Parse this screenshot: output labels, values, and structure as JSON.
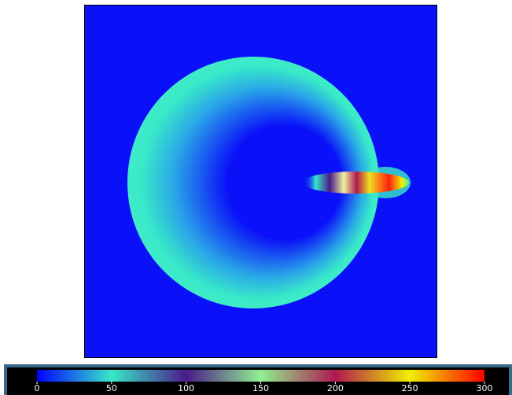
{
  "chart_data": {
    "type": "colorbar",
    "xlim": [
      0,
      300
    ],
    "xticks": [
      0,
      50,
      100,
      150,
      200,
      250,
      300
    ],
    "colormap": [
      {
        "value": 0,
        "color": "#0000ff"
      },
      {
        "value": 50,
        "color": "#38e8c8"
      },
      {
        "value": 100,
        "color": "#4a1a8a"
      },
      {
        "value": 150,
        "color": "#90f090"
      },
      {
        "value": 200,
        "color": "#b01850"
      },
      {
        "value": 250,
        "color": "#f0f000"
      },
      {
        "value": 300,
        "color": "#ff0000"
      }
    ]
  }
}
